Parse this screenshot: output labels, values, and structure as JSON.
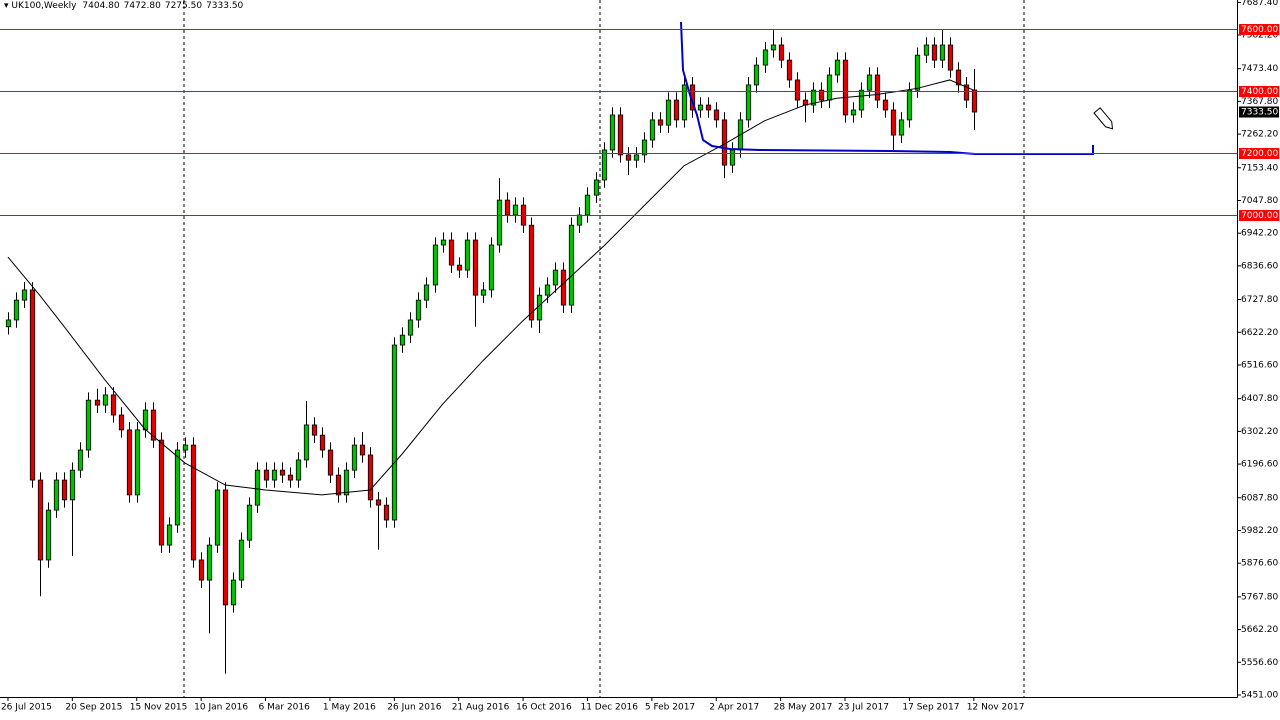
{
  "header": {
    "symbol": "UK100,Weekly",
    "ohlc": [
      "7404.80",
      "7472.80",
      "7275.50",
      "7333.50"
    ]
  },
  "chart_data": {
    "type": "candlestick",
    "open": [
      6640,
      6662,
      6726,
      6759,
      6145,
      5887,
      6048,
      6145,
      6081,
      6177,
      6242,
      6403,
      6387,
      6420,
      6355,
      6307,
      6097,
      6307,
      6371,
      6274,
      5935,
      6000,
      6242,
      6258,
      5887,
      5822,
      5935,
      6113,
      5742,
      5822,
      5951,
      6064,
      6177,
      6145,
      6177,
      6161,
      6145,
      6210,
      6323,
      6290,
      6242,
      6161,
      6097,
      6177,
      6258,
      6226,
      6081,
      6064,
      6016,
      6581,
      6613,
      6662,
      6726,
      6775,
      6904,
      6920,
      6839,
      6823,
      6920,
      6742,
      6759,
      6904,
      7049,
      7001,
      7033,
      6968,
      6662,
      6742,
      6775,
      6823,
      6710,
      6968,
      7001,
      7065,
      7114,
      7211,
      7324,
      7195,
      7178,
      7195,
      7243,
      7308,
      7291,
      7372,
      7308,
      7421,
      7340,
      7356,
      7340,
      7308,
      7162,
      7211,
      7308,
      7421,
      7485,
      7534,
      7550,
      7501,
      7437,
      7372,
      7356,
      7404,
      7372,
      7453,
      7501,
      7324,
      7340,
      7404,
      7453,
      7372,
      7340,
      7259,
      7308,
      7404,
      7517,
      7550,
      7501,
      7550,
      7469,
      7421,
      7404.8
    ],
    "high": [
      6687,
      6751,
      6784,
      6784,
      6170,
      6073,
      6170,
      6170,
      6202,
      6267,
      6428,
      6440,
      6445,
      6445,
      6380,
      6332,
      6332,
      6396,
      6396,
      6299,
      6025,
      6267,
      6283,
      6283,
      5912,
      5960,
      6138,
      6138,
      5847,
      5976,
      6089,
      6202,
      6202,
      6202,
      6202,
      6186,
      6235,
      6400,
      6348,
      6315,
      6267,
      6186,
      6202,
      6283,
      6300,
      6251,
      6106,
      6089,
      6606,
      6638,
      6687,
      6751,
      6800,
      6929,
      6945,
      6945,
      6864,
      6945,
      6945,
      6784,
      6929,
      7120,
      7074,
      7058,
      7058,
      6993,
      6767,
      6800,
      6848,
      6848,
      6993,
      7026,
      7090,
      7139,
      7236,
      7349,
      7349,
      7220,
      7220,
      7268,
      7333,
      7333,
      7397,
      7397,
      7446,
      7446,
      7381,
      7381,
      7365,
      7333,
      7236,
      7333,
      7446,
      7510,
      7559,
      7598,
      7575,
      7526,
      7462,
      7397,
      7429,
      7429,
      7478,
      7526,
      7526,
      7365,
      7429,
      7478,
      7478,
      7397,
      7365,
      7333,
      7429,
      7542,
      7575,
      7575,
      7600,
      7575,
      7494,
      7446,
      7472.8
    ],
    "low": [
      6615,
      6637,
      6701,
      6120,
      5770,
      5862,
      6023,
      6056,
      5900,
      6152,
      6217,
      6362,
      6362,
      6330,
      6282,
      6072,
      6072,
      6282,
      6249,
      5910,
      5910,
      5975,
      6217,
      5862,
      5797,
      5650,
      5910,
      5520,
      5717,
      5797,
      5926,
      6039,
      6120,
      6120,
      6136,
      6120,
      6120,
      6185,
      6265,
      6217,
      6136,
      6072,
      6072,
      6152,
      6201,
      6056,
      5920,
      5991,
      5991,
      6556,
      6588,
      6637,
      6701,
      6750,
      6879,
      6814,
      6798,
      6798,
      6640,
      6717,
      6734,
      6879,
      6976,
      6976,
      6943,
      6637,
      6620,
      6717,
      6750,
      6685,
      6685,
      6943,
      6976,
      7040,
      7089,
      7186,
      7170,
      7130,
      7153,
      7170,
      7218,
      7266,
      7266,
      7283,
      7283,
      7315,
      7315,
      7315,
      7283,
      7120,
      7137,
      7186,
      7283,
      7396,
      7460,
      7509,
      7476,
      7412,
      7347,
      7300,
      7331,
      7347,
      7347,
      7428,
      7299,
      7299,
      7315,
      7379,
      7347,
      7315,
      7210,
      7234,
      7283,
      7379,
      7492,
      7476,
      7476,
      7444,
      7396,
      7347,
      7275.5
    ],
    "close": [
      6662,
      6726,
      6759,
      6145,
      5887,
      6048,
      6145,
      6081,
      6177,
      6242,
      6403,
      6387,
      6420,
      6355,
      6307,
      6097,
      6307,
      6371,
      6274,
      5935,
      6000,
      6242,
      6258,
      5887,
      5822,
      5935,
      6113,
      5742,
      5822,
      5951,
      6064,
      6177,
      6145,
      6177,
      6161,
      6145,
      6210,
      6323,
      6290,
      6242,
      6161,
      6097,
      6177,
      6258,
      6226,
      6081,
      6064,
      6016,
      6581,
      6613,
      6662,
      6726,
      6775,
      6904,
      6920,
      6839,
      6823,
      6920,
      6742,
      6759,
      6904,
      7049,
      7001,
      7033,
      6968,
      6662,
      6742,
      6775,
      6823,
      6710,
      6968,
      7001,
      7065,
      7114,
      7211,
      7324,
      7195,
      7178,
      7195,
      7243,
      7308,
      7291,
      7372,
      7308,
      7421,
      7340,
      7356,
      7340,
      7308,
      7162,
      7211,
      7308,
      7421,
      7485,
      7534,
      7550,
      7501,
      7437,
      7372,
      7356,
      7404,
      7372,
      7453,
      7501,
      7324,
      7340,
      7404,
      7453,
      7372,
      7340,
      7259,
      7308,
      7404,
      7517,
      7550,
      7501,
      7550,
      7469,
      7421,
      7372,
      7333.5
    ],
    "bull_color": "#00c000",
    "bear_color": "#e00000",
    "ma": {
      "color": "#000000",
      "x": [
        0,
        4,
        7,
        12,
        17,
        22,
        27,
        32,
        39,
        45,
        49,
        54,
        59,
        64,
        69,
        74,
        79,
        84,
        89,
        94,
        99,
        103,
        108,
        113,
        117,
        120
      ],
      "values": [
        6865,
        6740,
        6640,
        6470,
        6310,
        6200,
        6129,
        6113,
        6097,
        6113,
        6230,
        6390,
        6530,
        6660,
        6780,
        6900,
        7030,
        7160,
        7230,
        7305,
        7356,
        7378,
        7390,
        7410,
        7437,
        7404
      ]
    },
    "xlim": [
      -0.99,
      152.7
    ],
    "ylim": [
      5444.5,
      7695.2
    ],
    "yticks": [
      {
        "value": 7687.4,
        "label": "7687.40"
      },
      {
        "value": 7582.2,
        "label": "7582.20"
      },
      {
        "value": 7473.4,
        "label": "7473.40"
      },
      {
        "value": 7367.8,
        "label": "7367.80"
      },
      {
        "value": 7262.2,
        "label": "7262.20"
      },
      {
        "value": 7153.4,
        "label": "7153.40"
      },
      {
        "value": 7047.8,
        "label": "7047.80"
      },
      {
        "value": 6942.2,
        "label": "6942.20"
      },
      {
        "value": 6836.6,
        "label": "6836.60"
      },
      {
        "value": 6727.8,
        "label": "6727.80"
      },
      {
        "value": 6622.2,
        "label": "6622.20"
      },
      {
        "value": 6516.6,
        "label": "6516.60"
      },
      {
        "value": 6407.8,
        "label": "6407.80"
      },
      {
        "value": 6302.2,
        "label": "6302.20"
      },
      {
        "value": 6196.6,
        "label": "6196.60"
      },
      {
        "value": 6087.8,
        "label": "6087.80"
      },
      {
        "value": 5982.2,
        "label": "5982.20"
      },
      {
        "value": 5876.6,
        "label": "5876.60"
      },
      {
        "value": 5767.8,
        "label": "5767.80"
      },
      {
        "value": 5662.2,
        "label": "5662.20"
      },
      {
        "value": 5556.6,
        "label": "5556.60"
      },
      {
        "value": 5451,
        "label": "5451.00"
      }
    ],
    "xticks": [
      {
        "value": 0,
        "label": "26 Jul 2015"
      },
      {
        "value": 8,
        "label": "20 Sep 2015"
      },
      {
        "value": 16,
        "label": "15 Nov 2015"
      },
      {
        "value": 24,
        "label": "10 Jan 2016"
      },
      {
        "value": 32,
        "label": "6 Mar 2016"
      },
      {
        "value": 40,
        "label": "1 May 2016"
      },
      {
        "value": 48,
        "label": "26 Jun 2016"
      },
      {
        "value": 56,
        "label": "21 Aug 2016"
      },
      {
        "value": 64,
        "label": "16 Oct 2016"
      },
      {
        "value": 72,
        "label": "11 Dec 2016"
      },
      {
        "value": 80,
        "label": "5 Feb 2017"
      },
      {
        "value": 88,
        "label": "2 Apr 2017"
      },
      {
        "value": 96,
        "label": "28 May 2017"
      },
      {
        "value": 104,
        "label": "23 Jul 2017"
      },
      {
        "value": 112,
        "label": "17 Sep 2017"
      },
      {
        "value": 120,
        "label": "12 Nov 2017"
      }
    ],
    "levels": [
      {
        "value": 7600,
        "label": "7600.00"
      },
      {
        "value": 7400,
        "label": "7400.00"
      },
      {
        "value": 7200,
        "label": "7200.00"
      },
      {
        "value": 7000,
        "label": "7000.00"
      }
    ],
    "level_color": "#ff0000",
    "price_label": {
      "value": 7333.5,
      "label": "7333.50"
    }
  }
}
